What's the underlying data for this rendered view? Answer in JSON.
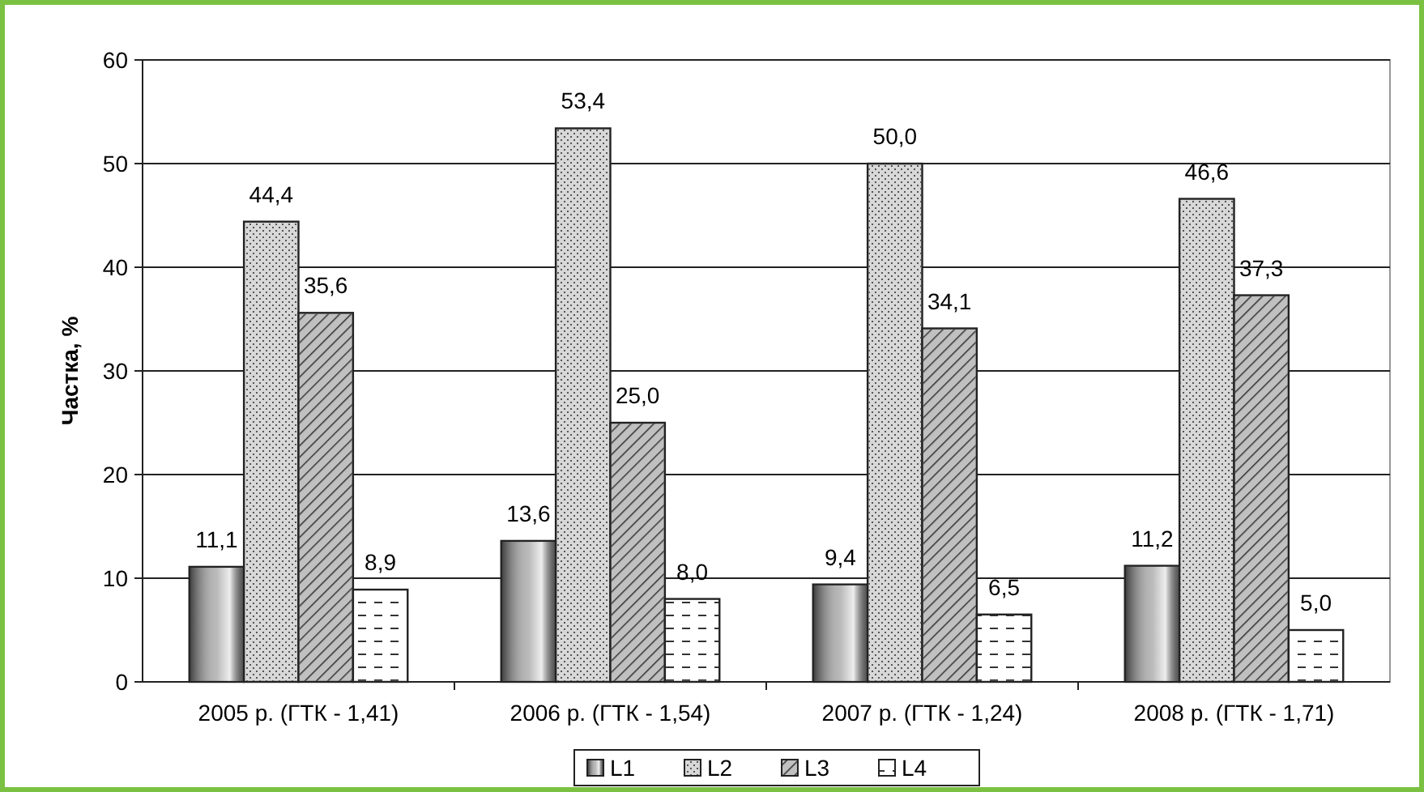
{
  "chart_data": {
    "type": "bar",
    "ylabel": "Частка, %",
    "categories": [
      "2005 р. (ГТК - 1,41)",
      "2006 р. (ГТК - 1,54)",
      "2007 р. (ГТК - 1,24)",
      "2008 р. (ГТК - 1,71)"
    ],
    "series": [
      {
        "name": "L1",
        "color": "#a8a8a8",
        "values": [
          11.1,
          13.6,
          9.4,
          11.2
        ],
        "value_labels": [
          "11,1",
          "13,6",
          "9,4",
          "11,2"
        ]
      },
      {
        "name": "L2",
        "color": "#d8d8d8",
        "values": [
          44.4,
          53.4,
          50.0,
          46.6
        ],
        "value_labels": [
          "44,4",
          "53,4",
          "50,0",
          "46,6"
        ]
      },
      {
        "name": "L3",
        "color": "#c0c0c0",
        "values": [
          35.6,
          25.0,
          34.1,
          37.3
        ],
        "value_labels": [
          "35,6",
          "25,0",
          "34,1",
          "37,3"
        ]
      },
      {
        "name": "L4",
        "color": "#ffffff",
        "values": [
          8.9,
          8.0,
          6.5,
          5.0
        ],
        "value_labels": [
          "8,9",
          "8,0",
          "6,5",
          "5,0"
        ]
      }
    ],
    "ylim": [
      0,
      60
    ],
    "yticks": [
      0,
      10,
      20,
      30,
      40,
      50,
      60
    ],
    "grid": "y",
    "legend": "bottom"
  }
}
